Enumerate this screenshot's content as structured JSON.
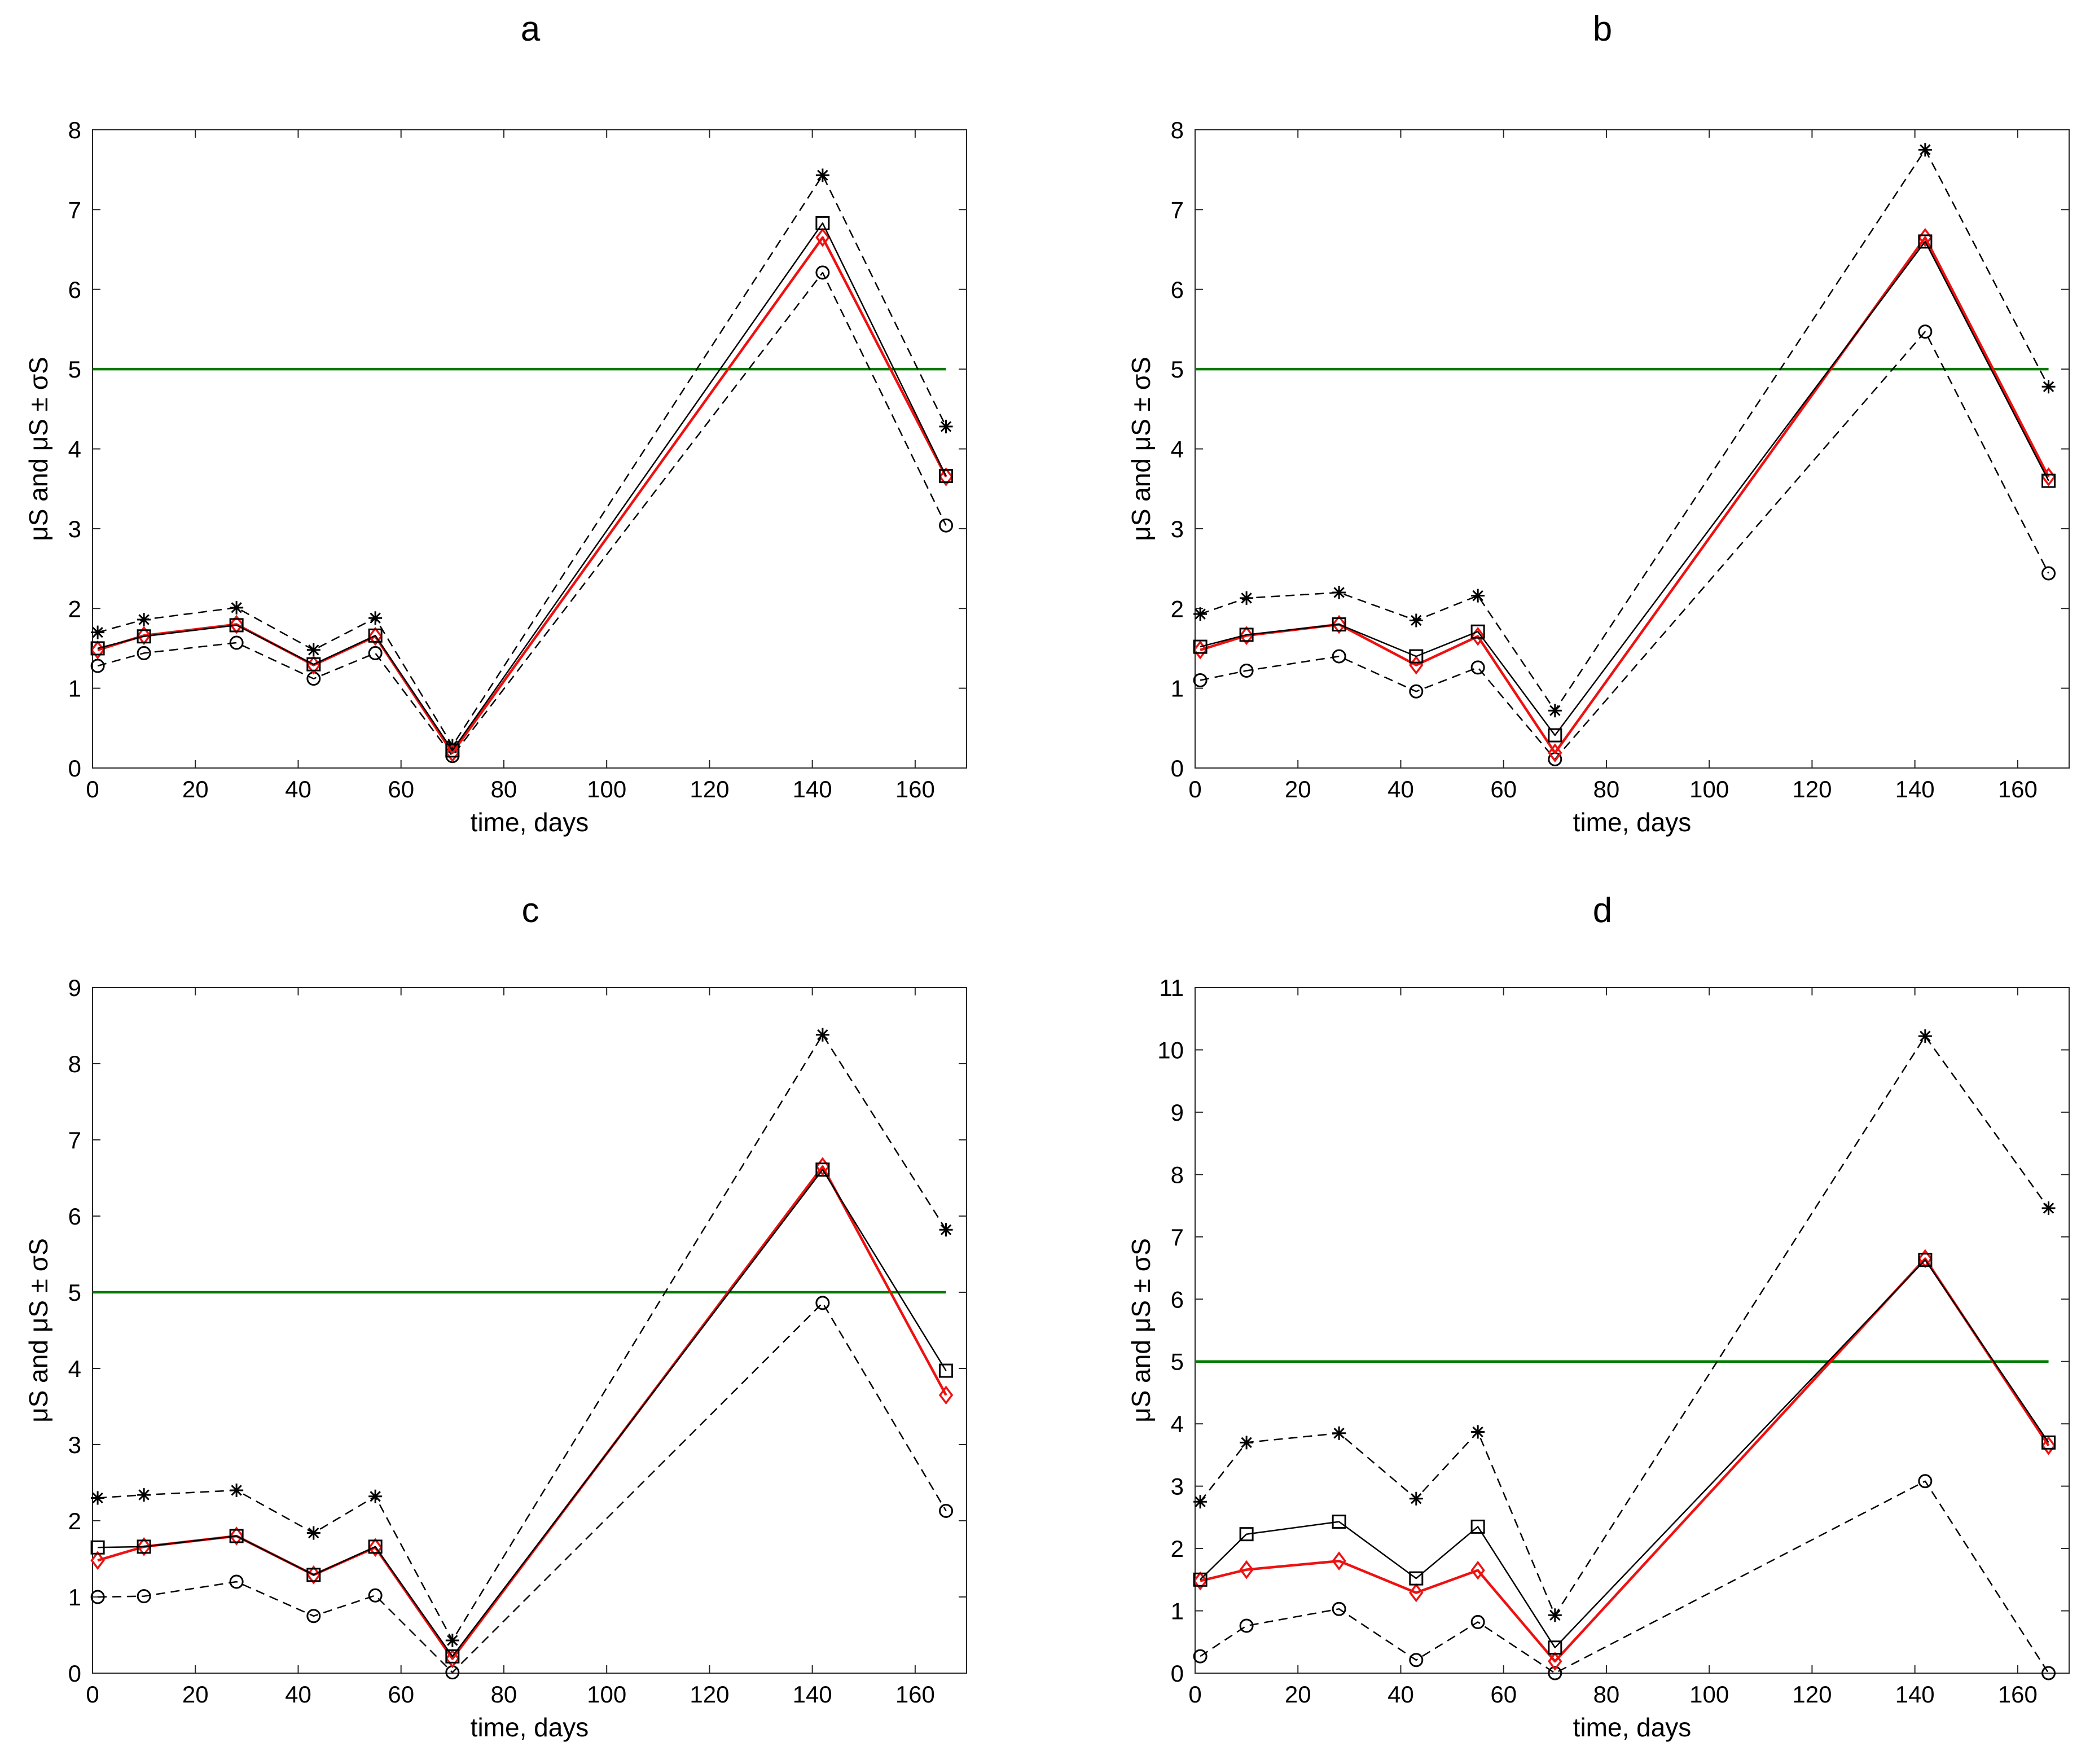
{
  "figure": {
    "title": "Four panels a–d: μS and μS ± σS versus time"
  },
  "colors": {
    "threshold": "#007a00",
    "red_series": "#ee1111",
    "black": "#000000",
    "axis": "#262626"
  },
  "chart_data": [
    {
      "panel": "a",
      "type": "line",
      "xlabel": "time, days",
      "ylabel": "μS and μS ± σS",
      "xlim": [
        0,
        170
      ],
      "ylim": [
        0,
        8
      ],
      "xticks": [
        0,
        20,
        40,
        60,
        80,
        100,
        120,
        140,
        160
      ],
      "yticks": [
        0,
        1,
        2,
        3,
        4,
        5,
        6,
        7,
        8
      ],
      "x": [
        1,
        10,
        28,
        43,
        55,
        70,
        142,
        166
      ],
      "series": [
        {
          "name": "mean plus sigma",
          "style": "dashed",
          "marker": "asterisk",
          "values": [
            1.7,
            1.86,
            2.01,
            1.48,
            1.88,
            0.28,
            7.43,
            4.28
          ]
        },
        {
          "name": "mean",
          "style": "solid",
          "marker": "square",
          "values": [
            1.5,
            1.65,
            1.79,
            1.3,
            1.66,
            0.22,
            6.83,
            3.66
          ]
        },
        {
          "name": "mean (red)",
          "style": "solid-red",
          "marker": "diamond",
          "values": [
            1.48,
            1.66,
            1.8,
            1.29,
            1.65,
            0.19,
            6.65,
            3.65
          ]
        },
        {
          "name": "mean minus sigma",
          "style": "dashed",
          "marker": "circle",
          "values": [
            1.28,
            1.44,
            1.57,
            1.12,
            1.44,
            0.15,
            6.21,
            3.04
          ]
        }
      ],
      "threshold": 5
    },
    {
      "panel": "b",
      "type": "line",
      "xlabel": "time, days",
      "ylabel": "μS and μS ± σS",
      "xlim": [
        0,
        170
      ],
      "ylim": [
        0,
        8
      ],
      "xticks": [
        0,
        20,
        40,
        60,
        80,
        100,
        120,
        140,
        160
      ],
      "yticks": [
        0,
        1,
        2,
        3,
        4,
        5,
        6,
        7,
        8
      ],
      "x": [
        1,
        10,
        28,
        43,
        55,
        70,
        142,
        166
      ],
      "series": [
        {
          "name": "mean plus sigma",
          "style": "dashed",
          "marker": "asterisk",
          "values": [
            1.93,
            2.13,
            2.2,
            1.85,
            2.16,
            0.72,
            7.75,
            4.78
          ]
        },
        {
          "name": "mean",
          "style": "solid",
          "marker": "square",
          "values": [
            1.52,
            1.67,
            1.8,
            1.4,
            1.71,
            0.41,
            6.6,
            3.6
          ]
        },
        {
          "name": "mean (red)",
          "style": "solid-red",
          "marker": "diamond",
          "values": [
            1.48,
            1.66,
            1.8,
            1.29,
            1.65,
            0.19,
            6.65,
            3.65
          ]
        },
        {
          "name": "mean minus sigma",
          "style": "dashed",
          "marker": "circle",
          "values": [
            1.1,
            1.22,
            1.4,
            0.96,
            1.26,
            0.11,
            5.47,
            2.44
          ]
        }
      ],
      "threshold": 5
    },
    {
      "panel": "c",
      "type": "line",
      "xlabel": "time, days",
      "ylabel": "μS and μS ± σS",
      "xlim": [
        0,
        170
      ],
      "ylim": [
        0,
        9
      ],
      "xticks": [
        0,
        20,
        40,
        60,
        80,
        100,
        120,
        140,
        160
      ],
      "yticks": [
        0,
        1,
        2,
        3,
        4,
        5,
        6,
        7,
        8,
        9
      ],
      "x": [
        1,
        10,
        28,
        43,
        55,
        70,
        142,
        166
      ],
      "series": [
        {
          "name": "mean plus sigma",
          "style": "dashed",
          "marker": "asterisk",
          "values": [
            2.3,
            2.34,
            2.4,
            1.84,
            2.32,
            0.43,
            8.38,
            5.82
          ]
        },
        {
          "name": "mean",
          "style": "solid",
          "marker": "square",
          "values": [
            1.65,
            1.66,
            1.8,
            1.29,
            1.66,
            0.22,
            6.61,
            3.97
          ]
        },
        {
          "name": "mean (red)",
          "style": "solid-red",
          "marker": "diamond",
          "values": [
            1.48,
            1.66,
            1.8,
            1.29,
            1.65,
            0.19,
            6.65,
            3.65
          ]
        },
        {
          "name": "mean minus sigma",
          "style": "dashed",
          "marker": "circle",
          "values": [
            1.0,
            1.01,
            1.2,
            0.75,
            1.02,
            0.01,
            4.86,
            2.13
          ]
        }
      ],
      "threshold": 5
    },
    {
      "panel": "d",
      "type": "line",
      "xlabel": "time, days",
      "ylabel": "μS and μS ± σS",
      "xlim": [
        0,
        170
      ],
      "ylim": [
        0,
        11
      ],
      "xticks": [
        0,
        20,
        40,
        60,
        80,
        100,
        120,
        140,
        160
      ],
      "yticks": [
        0,
        1,
        2,
        3,
        4,
        5,
        6,
        7,
        8,
        9,
        10,
        11
      ],
      "x": [
        1,
        10,
        28,
        43,
        55,
        70,
        142,
        166
      ],
      "series": [
        {
          "name": "mean plus sigma",
          "style": "dashed",
          "marker": "asterisk",
          "values": [
            2.75,
            3.7,
            3.85,
            2.8,
            3.87,
            0.93,
            10.22,
            7.46
          ]
        },
        {
          "name": "mean",
          "style": "solid",
          "marker": "square",
          "values": [
            1.5,
            2.23,
            2.43,
            1.52,
            2.35,
            0.41,
            6.63,
            3.7
          ]
        },
        {
          "name": "mean (red)",
          "style": "solid-red",
          "marker": "diamond",
          "values": [
            1.48,
            1.66,
            1.8,
            1.29,
            1.65,
            0.19,
            6.65,
            3.65
          ]
        },
        {
          "name": "mean minus sigma",
          "style": "dashed",
          "marker": "circle",
          "values": [
            0.27,
            0.76,
            1.03,
            0.21,
            0.82,
            0.0,
            3.08,
            0.0
          ]
        }
      ],
      "threshold": 5
    }
  ]
}
